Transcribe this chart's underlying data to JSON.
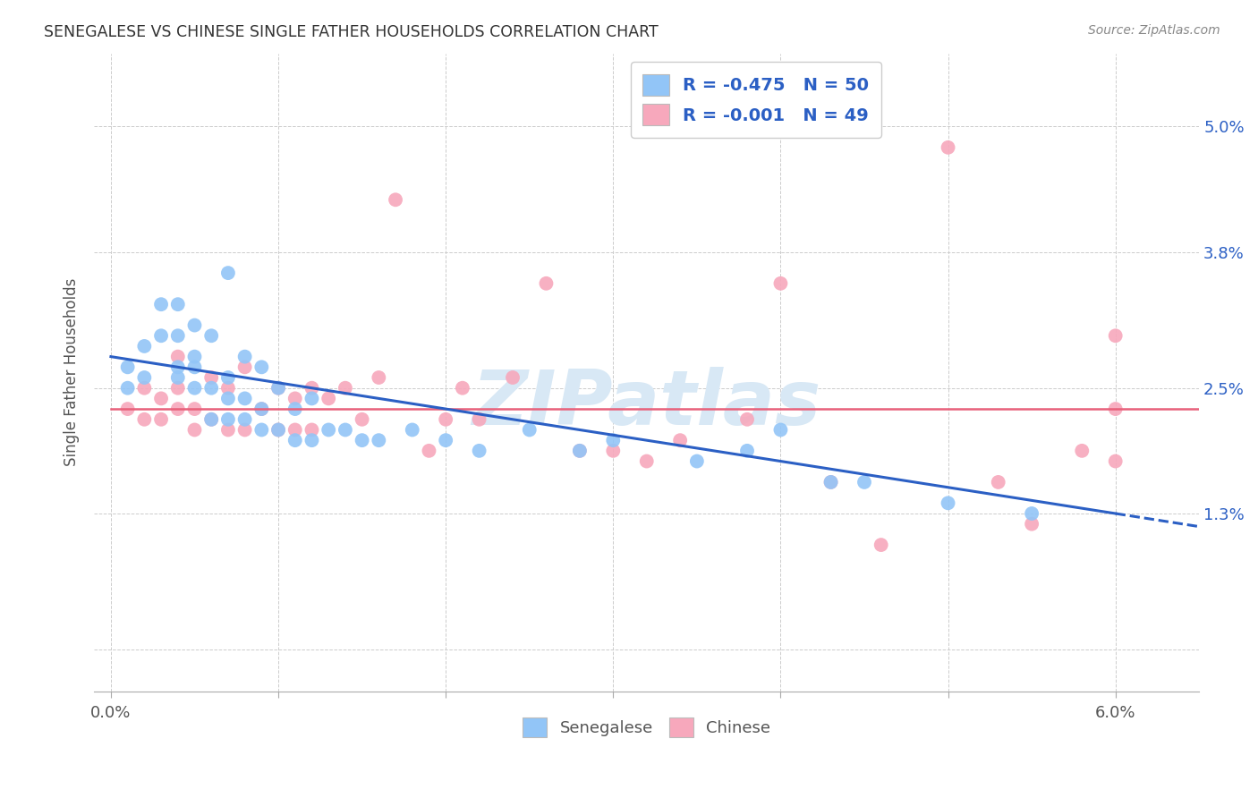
{
  "title": "SENEGALESE VS CHINESE SINGLE FATHER HOUSEHOLDS CORRELATION CHART",
  "source": "Source: ZipAtlas.com",
  "ylabel": "Single Father Households",
  "blue_color": "#92C5F7",
  "pink_color": "#F7A8BC",
  "blue_line_color": "#2B5FC4",
  "pink_line_color": "#E8607A",
  "legend_text_color": "#2B5FC4",
  "title_color": "#333333",
  "watermark_color": "#D8E8F5",
  "watermark_text": "ZIPatlas",
  "R_blue": -0.475,
  "N_blue": 50,
  "R_pink": -0.001,
  "N_pink": 49,
  "blue_line_x0": 0.0,
  "blue_line_y0": 0.028,
  "blue_line_x1": 0.06,
  "blue_line_y1": 0.013,
  "pink_line_y": 0.023,
  "blue_scatter_x": [
    0.001,
    0.001,
    0.002,
    0.002,
    0.003,
    0.003,
    0.004,
    0.004,
    0.004,
    0.004,
    0.005,
    0.005,
    0.005,
    0.005,
    0.006,
    0.006,
    0.006,
    0.007,
    0.007,
    0.007,
    0.007,
    0.008,
    0.008,
    0.008,
    0.009,
    0.009,
    0.009,
    0.01,
    0.01,
    0.011,
    0.011,
    0.012,
    0.012,
    0.013,
    0.014,
    0.015,
    0.016,
    0.018,
    0.02,
    0.022,
    0.025,
    0.028,
    0.03,
    0.035,
    0.038,
    0.04,
    0.043,
    0.045,
    0.05,
    0.055
  ],
  "blue_scatter_y": [
    0.025,
    0.027,
    0.026,
    0.029,
    0.03,
    0.033,
    0.026,
    0.027,
    0.03,
    0.033,
    0.025,
    0.027,
    0.028,
    0.031,
    0.022,
    0.025,
    0.03,
    0.022,
    0.024,
    0.026,
    0.036,
    0.022,
    0.024,
    0.028,
    0.021,
    0.023,
    0.027,
    0.021,
    0.025,
    0.02,
    0.023,
    0.02,
    0.024,
    0.021,
    0.021,
    0.02,
    0.02,
    0.021,
    0.02,
    0.019,
    0.021,
    0.019,
    0.02,
    0.018,
    0.019,
    0.021,
    0.016,
    0.016,
    0.014,
    0.013
  ],
  "pink_scatter_x": [
    0.001,
    0.002,
    0.002,
    0.003,
    0.003,
    0.004,
    0.004,
    0.004,
    0.005,
    0.005,
    0.006,
    0.006,
    0.007,
    0.007,
    0.008,
    0.008,
    0.009,
    0.01,
    0.01,
    0.011,
    0.011,
    0.012,
    0.012,
    0.013,
    0.014,
    0.015,
    0.016,
    0.017,
    0.019,
    0.02,
    0.021,
    0.022,
    0.024,
    0.026,
    0.028,
    0.03,
    0.032,
    0.034,
    0.038,
    0.04,
    0.043,
    0.046,
    0.05,
    0.053,
    0.055,
    0.058,
    0.06,
    0.06,
    0.06
  ],
  "pink_scatter_y": [
    0.023,
    0.022,
    0.025,
    0.022,
    0.024,
    0.023,
    0.025,
    0.028,
    0.021,
    0.023,
    0.022,
    0.026,
    0.021,
    0.025,
    0.021,
    0.027,
    0.023,
    0.021,
    0.025,
    0.021,
    0.024,
    0.021,
    0.025,
    0.024,
    0.025,
    0.022,
    0.026,
    0.043,
    0.019,
    0.022,
    0.025,
    0.022,
    0.026,
    0.035,
    0.019,
    0.019,
    0.018,
    0.02,
    0.022,
    0.035,
    0.016,
    0.01,
    0.048,
    0.016,
    0.012,
    0.019,
    0.03,
    0.023,
    0.018
  ],
  "xlim": [
    -0.001,
    0.065
  ],
  "ylim": [
    -0.004,
    0.057
  ],
  "ytick_positions": [
    0.0,
    0.013,
    0.025,
    0.038,
    0.05
  ],
  "ytick_labels": [
    "",
    "1.3%",
    "2.5%",
    "3.8%",
    "5.0%"
  ],
  "xtick_positions": [
    0.0,
    0.01,
    0.02,
    0.03,
    0.04,
    0.05,
    0.06
  ],
  "xtick_labels": [
    "0.0%",
    "",
    "",
    "",
    "",
    "",
    "6.0%"
  ]
}
